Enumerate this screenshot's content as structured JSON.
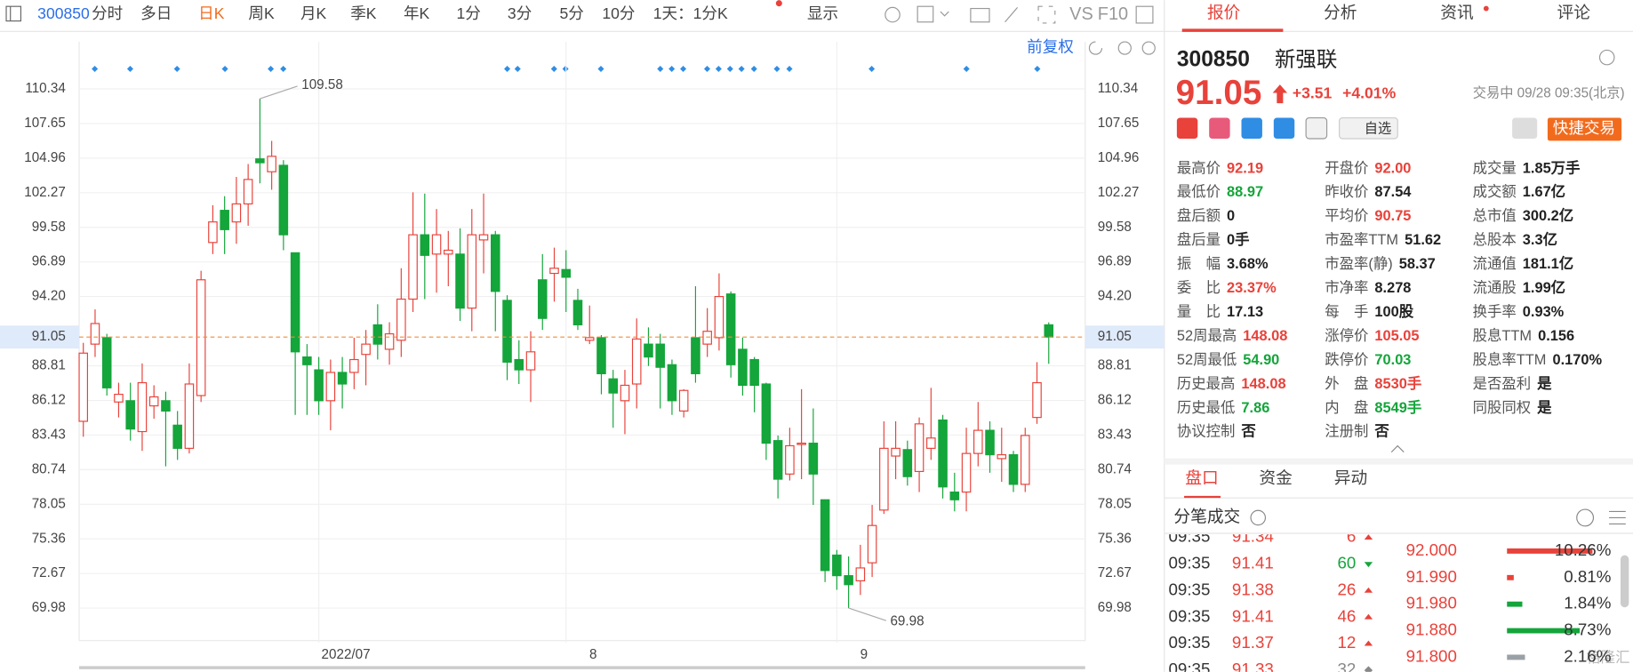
{
  "toolbar": {
    "code": "300850",
    "tabs": [
      "分时",
      "多日",
      "日K",
      "周K",
      "月K",
      "季K",
      "年K",
      "1分",
      "3分",
      "5分",
      "10分",
      "1天：1分K",
      "显示"
    ],
    "active_tab": 2,
    "compare": "VS",
    "f10": "F10"
  },
  "chart_data": {
    "type": "candlestick",
    "adjust": "前复权",
    "categories": [
      null,
      null,
      null,
      null,
      null,
      null,
      null,
      null,
      null,
      null,
      null,
      null,
      null,
      null,
      null,
      null,
      null,
      null,
      null,
      null,
      "2022/07",
      null,
      null,
      null,
      null,
      null,
      null,
      null,
      null,
      null,
      null,
      null,
      null,
      null,
      null,
      null,
      null,
      null,
      null,
      null,
      null,
      "8",
      null,
      null,
      null,
      null,
      null,
      null,
      null,
      null,
      null,
      null,
      null,
      null,
      null,
      null,
      null,
      null,
      null,
      null,
      null,
      null,
      null,
      null,
      "9",
      null,
      null,
      null,
      null,
      null,
      null,
      null,
      null,
      null,
      null,
      null,
      null,
      null,
      null,
      null,
      null,
      null,
      null
    ],
    "open": [
      84.5,
      90.5,
      91.0,
      86.0,
      86.1,
      83.7,
      85.7,
      86.1,
      84.2,
      82.4,
      86.5,
      98.4,
      100.9,
      100.0,
      101.4,
      104.9,
      103.9,
      104.4,
      97.6,
      89.5,
      88.5,
      86.1,
      88.3,
      88.3,
      89.7,
      92.0,
      90.1,
      90.8,
      94.0,
      99.0,
      97.5,
      97.5,
      97.5,
      93.3,
      98.6,
      99.0,
      93.9,
      89.3,
      88.5,
      95.5,
      96.0,
      96.3,
      93.9,
      90.8,
      91.0,
      87.8,
      86.1,
      87.4,
      90.5,
      90.5,
      88.9,
      85.3,
      91.0,
      90.5,
      91.0,
      94.4,
      90.1,
      89.3,
      87.4,
      83.0,
      80.4,
      82.7,
      82.8,
      78.4,
      74.1,
      72.5,
      72.1,
      73.5,
      77.6,
      81.8,
      82.3,
      80.6,
      82.4,
      84.6,
      79.0,
      79.0,
      82.0,
      83.8,
      81.6,
      81.9,
      79.6,
      84.8,
      92.0
    ],
    "high": [
      90.6,
      93.2,
      91.3,
      87.5,
      87.5,
      89.0,
      87.3,
      86.8,
      85.3,
      89.0,
      96.2,
      101.3,
      102.0,
      103.5,
      104.5,
      109.58,
      106.3,
      104.8,
      97.6,
      90.5,
      89.5,
      89.3,
      89.5,
      91.0,
      91.6,
      93.6,
      92.2,
      96.4,
      102.3,
      102.2,
      101.0,
      99.3,
      99.5,
      101.0,
      102.2,
      99.3,
      94.3,
      90.8,
      91.5,
      97.5,
      98.0,
      97.8,
      94.8,
      93.5,
      91.2,
      88.5,
      88.5,
      92.5,
      91.8,
      91.3,
      89.3,
      87.0,
      95.0,
      93.3,
      96.0,
      94.6,
      91.0,
      89.5,
      87.5,
      83.4,
      84.0,
      87.0,
      85.5,
      78.4,
      74.5,
      74.0,
      74.9,
      78.0,
      84.5,
      84.5,
      83.0,
      84.8,
      87.1,
      85.0,
      80.5,
      84.0,
      86.0,
      84.5,
      84.0,
      82.2,
      84.0,
      89.1,
      92.19
    ],
    "low": [
      83.3,
      89.5,
      86.5,
      84.8,
      83.0,
      82.2,
      84.7,
      81.0,
      81.5,
      82.0,
      86.0,
      97.5,
      97.5,
      98.3,
      99.7,
      103.0,
      102.5,
      97.8,
      85.0,
      85.0,
      85.0,
      83.8,
      85.5,
      87.0,
      87.3,
      89.3,
      88.9,
      89.5,
      93.0,
      94.0,
      94.5,
      95.0,
      92.3,
      91.5,
      96.0,
      91.5,
      87.7,
      87.4,
      86.0,
      91.6,
      93.8,
      93.0,
      91.6,
      90.5,
      86.6,
      84.0,
      83.5,
      85.5,
      88.8,
      85.5,
      85.0,
      84.8,
      87.5,
      89.5,
      90.0,
      87.9,
      86.5,
      85.2,
      81.5,
      78.5,
      79.9,
      80.0,
      78.0,
      72.0,
      71.4,
      69.98,
      71.0,
      72.4,
      77.3,
      80.0,
      79.5,
      79.0,
      81.5,
      78.5,
      77.5,
      77.5,
      81.0,
      80.5,
      79.8,
      79.0,
      79.0,
      84.3,
      88.97
    ],
    "close": [
      89.8,
      92.1,
      87.1,
      86.6,
      83.9,
      87.5,
      86.4,
      85.3,
      82.4,
      87.4,
      95.5,
      100.0,
      99.4,
      101.4,
      103.3,
      104.6,
      105.1,
      99.0,
      89.9,
      88.9,
      86.1,
      88.3,
      87.4,
      89.3,
      90.5,
      90.5,
      91.3,
      94.0,
      99.0,
      97.4,
      99.0,
      97.8,
      93.3,
      99.0,
      99.0,
      94.6,
      89.1,
      88.5,
      89.9,
      92.5,
      96.4,
      95.7,
      92.0,
      91.0,
      88.2,
      86.7,
      87.3,
      90.9,
      89.5,
      88.7,
      86.1,
      86.9,
      88.2,
      91.5,
      94.2,
      88.9,
      87.3,
      87.3,
      82.8,
      80.0,
      82.6,
      82.8,
      80.4,
      72.9,
      72.5,
      71.8,
      73.1,
      76.4,
      82.4,
      82.4,
      80.2,
      84.3,
      83.2,
      79.4,
      78.4,
      82.0,
      83.8,
      81.9,
      81.9,
      79.6,
      83.4,
      87.5,
      91.05
    ],
    "up_color": "#e8423a",
    "down_color": "#14a53b",
    "price_line_color": "#f08c3c",
    "marker_color": "#2f8de4",
    "ylim": [
      67.29,
      113.03
    ],
    "yticks": [
      69.98,
      72.67,
      75.36,
      78.05,
      80.74,
      83.43,
      86.12,
      88.81,
      {
        "value": 94.2,
        "label": "94.20"
      },
      96.89,
      99.58,
      102.27,
      104.96,
      107.65,
      110.34
    ],
    "last_price": 91.05,
    "max_point": 109.58,
    "min_point": 69.98,
    "grid": true
  },
  "tabs": [
    "报价",
    "分析",
    "资讯",
    "评论"
  ],
  "quote": {
    "code": "300850",
    "name": "新强联",
    "price": "91.05",
    "change": "+3.51",
    "change_pct": "+4.01%",
    "status": "交易中 09/28 09:35(北京)",
    "watch": "自选",
    "trade": "快捷交易"
  },
  "stats": [
    [
      {
        "label": "最高价",
        "value": "92.19",
        "color": "#e8423a"
      },
      {
        "label": "最低价",
        "value": "88.97",
        "color": "#14a53b"
      },
      {
        "label": "盘后额",
        "value": "0"
      },
      {
        "label": "盘后量",
        "value": "0手"
      },
      {
        "label": "振　幅",
        "value": "3.68%"
      },
      {
        "label": "委　比",
        "value": "23.37%",
        "color": "#e8423a"
      },
      {
        "label": "量　比",
        "value": "17.13"
      },
      {
        "label": "52周最高",
        "value": "148.08",
        "color": "#e8423a"
      },
      {
        "label": "52周最低",
        "value": "54.90",
        "color": "#14a53b"
      },
      {
        "label": "历史最高",
        "value": "148.08",
        "color": "#e8423a"
      },
      {
        "label": "历史最低",
        "value": "7.86",
        "color": "#14a53b"
      },
      {
        "label": "协议控制",
        "value": "否"
      }
    ],
    [
      {
        "label": "开盘价",
        "value": "92.00",
        "color": "#e8423a"
      },
      {
        "label": "昨收价",
        "value": "87.54"
      },
      {
        "label": "平均价",
        "value": "90.75",
        "color": "#e8423a"
      },
      {
        "label": "市盈率TTM",
        "value": "51.62"
      },
      {
        "label": "市盈率(静)",
        "value": "58.37"
      },
      {
        "label": "市净率",
        "value": "8.278"
      },
      {
        "label": "每　手",
        "value": "100股"
      },
      {
        "label": "涨停价",
        "value": "105.05",
        "color": "#e8423a"
      },
      {
        "label": "跌停价",
        "value": "70.03",
        "color": "#14a53b"
      },
      {
        "label": "外　盘",
        "value": "8530手",
        "color": "#e8423a"
      },
      {
        "label": "内　盘",
        "value": "8549手",
        "color": "#14a53b"
      },
      {
        "label": "注册制",
        "value": "否"
      }
    ],
    [
      {
        "label": "成交量",
        "value": "1.85万手"
      },
      {
        "label": "成交额",
        "value": "1.67亿"
      },
      {
        "label": "总市值",
        "value": "300.2亿"
      },
      {
        "label": "总股本",
        "value": "3.3亿"
      },
      {
        "label": "流通值",
        "value": "181.1亿"
      },
      {
        "label": "流通股",
        "value": "1.99亿"
      },
      {
        "label": "换手率",
        "value": "0.93%"
      },
      {
        "label": "股息TTM",
        "value": "0.156"
      },
      {
        "label": "股息率TTM",
        "value": "0.170%"
      },
      {
        "label": "是否盈利",
        "value": "是"
      },
      {
        "label": "同股同权",
        "value": "是"
      }
    ]
  ],
  "sub_tabs": [
    "盘口",
    "资金",
    "异动"
  ],
  "ticks_title": "分笔成交",
  "trades": [
    {
      "time": "09:35",
      "price": "91.34",
      "volume": "6",
      "dir": "up"
    },
    {
      "time": "09:35",
      "price": "91.41",
      "volume": "60",
      "dir": "down"
    },
    {
      "time": "09:35",
      "price": "91.38",
      "volume": "26",
      "dir": "up"
    },
    {
      "time": "09:35",
      "price": "91.41",
      "volume": "46",
      "dir": "up"
    },
    {
      "time": "09:35",
      "price": "91.37",
      "volume": "12",
      "dir": "up"
    },
    {
      "time": "09:35",
      "price": "91.33",
      "volume": "32",
      "dir": "flat"
    }
  ],
  "book": {
    "prices": [
      "92.000",
      "91.990",
      "91.980",
      "91.880",
      "91.800"
    ],
    "values": [
      10.26,
      0.81,
      1.84,
      8.73,
      2.16
    ],
    "value_labels": [
      "10.26%",
      "0.81%",
      "1.84%",
      "8.73%",
      "2.16%"
    ],
    "colors": [
      "#e8423a",
      "#e8423a",
      "#14a53b",
      "#14a53b",
      "#9aa0a6"
    ]
  },
  "watermark": "格隆汇"
}
